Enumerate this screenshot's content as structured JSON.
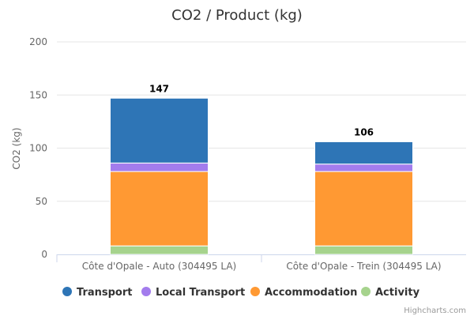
{
  "chart_data": {
    "type": "bar",
    "stacked": true,
    "title": "CO2 / Product (kg)",
    "xlabel": "",
    "ylabel": "CO2 (kg)",
    "ylim": [
      0,
      200
    ],
    "yticks": [
      0,
      50,
      100,
      150,
      200
    ],
    "grid": true,
    "legend_placement": "bottom",
    "categories": [
      "Côte d'Opale - Auto (304495 LA)",
      "Côte d'Opale - Trein (304495 LA)"
    ],
    "totals": [
      147,
      106
    ],
    "series": [
      {
        "name": "Activity",
        "color": "#a6d38d",
        "values": [
          8,
          8
        ]
      },
      {
        "name": "Accommodation",
        "color": "#ff9933",
        "values": [
          70,
          70
        ]
      },
      {
        "name": "Local Transport",
        "color": "#a37ced",
        "values": [
          8,
          7
        ]
      },
      {
        "name": "Transport",
        "color": "#2e75b6",
        "values": [
          61,
          21
        ]
      }
    ],
    "legend_order": [
      "Transport",
      "Local Transport",
      "Accommodation",
      "Activity"
    ],
    "credits": "Highcharts.com"
  }
}
